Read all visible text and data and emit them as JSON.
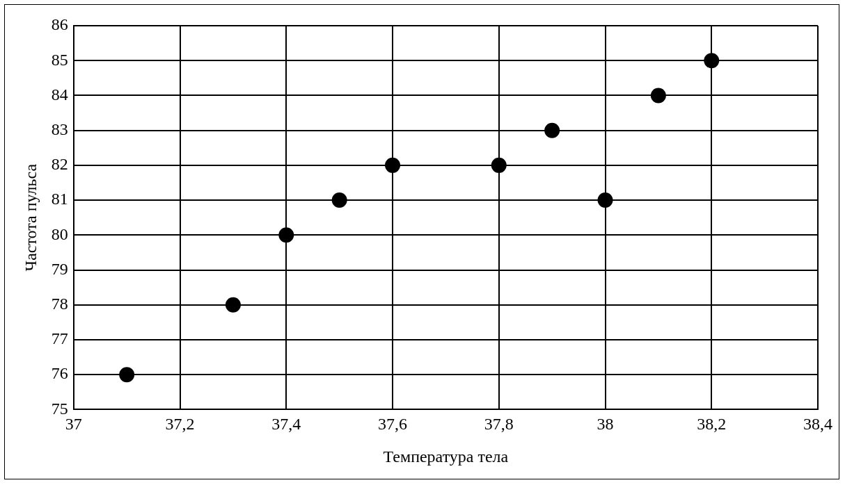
{
  "chart_data": {
    "type": "scatter",
    "xlabel": "Температура тела",
    "ylabel": "Частота пульса",
    "x": [
      37.1,
      37.3,
      37.4,
      37.5,
      37.6,
      37.8,
      37.9,
      38,
      38.1,
      38.2
    ],
    "series": [
      {
        "color": "#000000",
        "values": [
          76,
          78,
          80,
          81,
          82,
          82,
          83,
          81,
          84,
          85
        ]
      }
    ],
    "xlim": [
      37,
      38.4
    ],
    "xticks": [
      37,
      {
        "value": 37.2,
        "label": "37,2"
      },
      {
        "value": 37.4,
        "label": "37,4"
      },
      {
        "value": 37.6,
        "label": "37,6"
      },
      {
        "value": 37.8,
        "label": "37,8"
      },
      38,
      {
        "value": 38.2,
        "label": "38,2"
      },
      {
        "value": 38.4,
        "label": "38,4"
      }
    ],
    "ylim": [
      75,
      86
    ],
    "yticks": [
      75,
      76,
      77,
      78,
      79,
      80,
      81,
      82,
      83,
      84,
      85,
      86
    ],
    "grid": true,
    "legend": false,
    "marker": "circle"
  }
}
